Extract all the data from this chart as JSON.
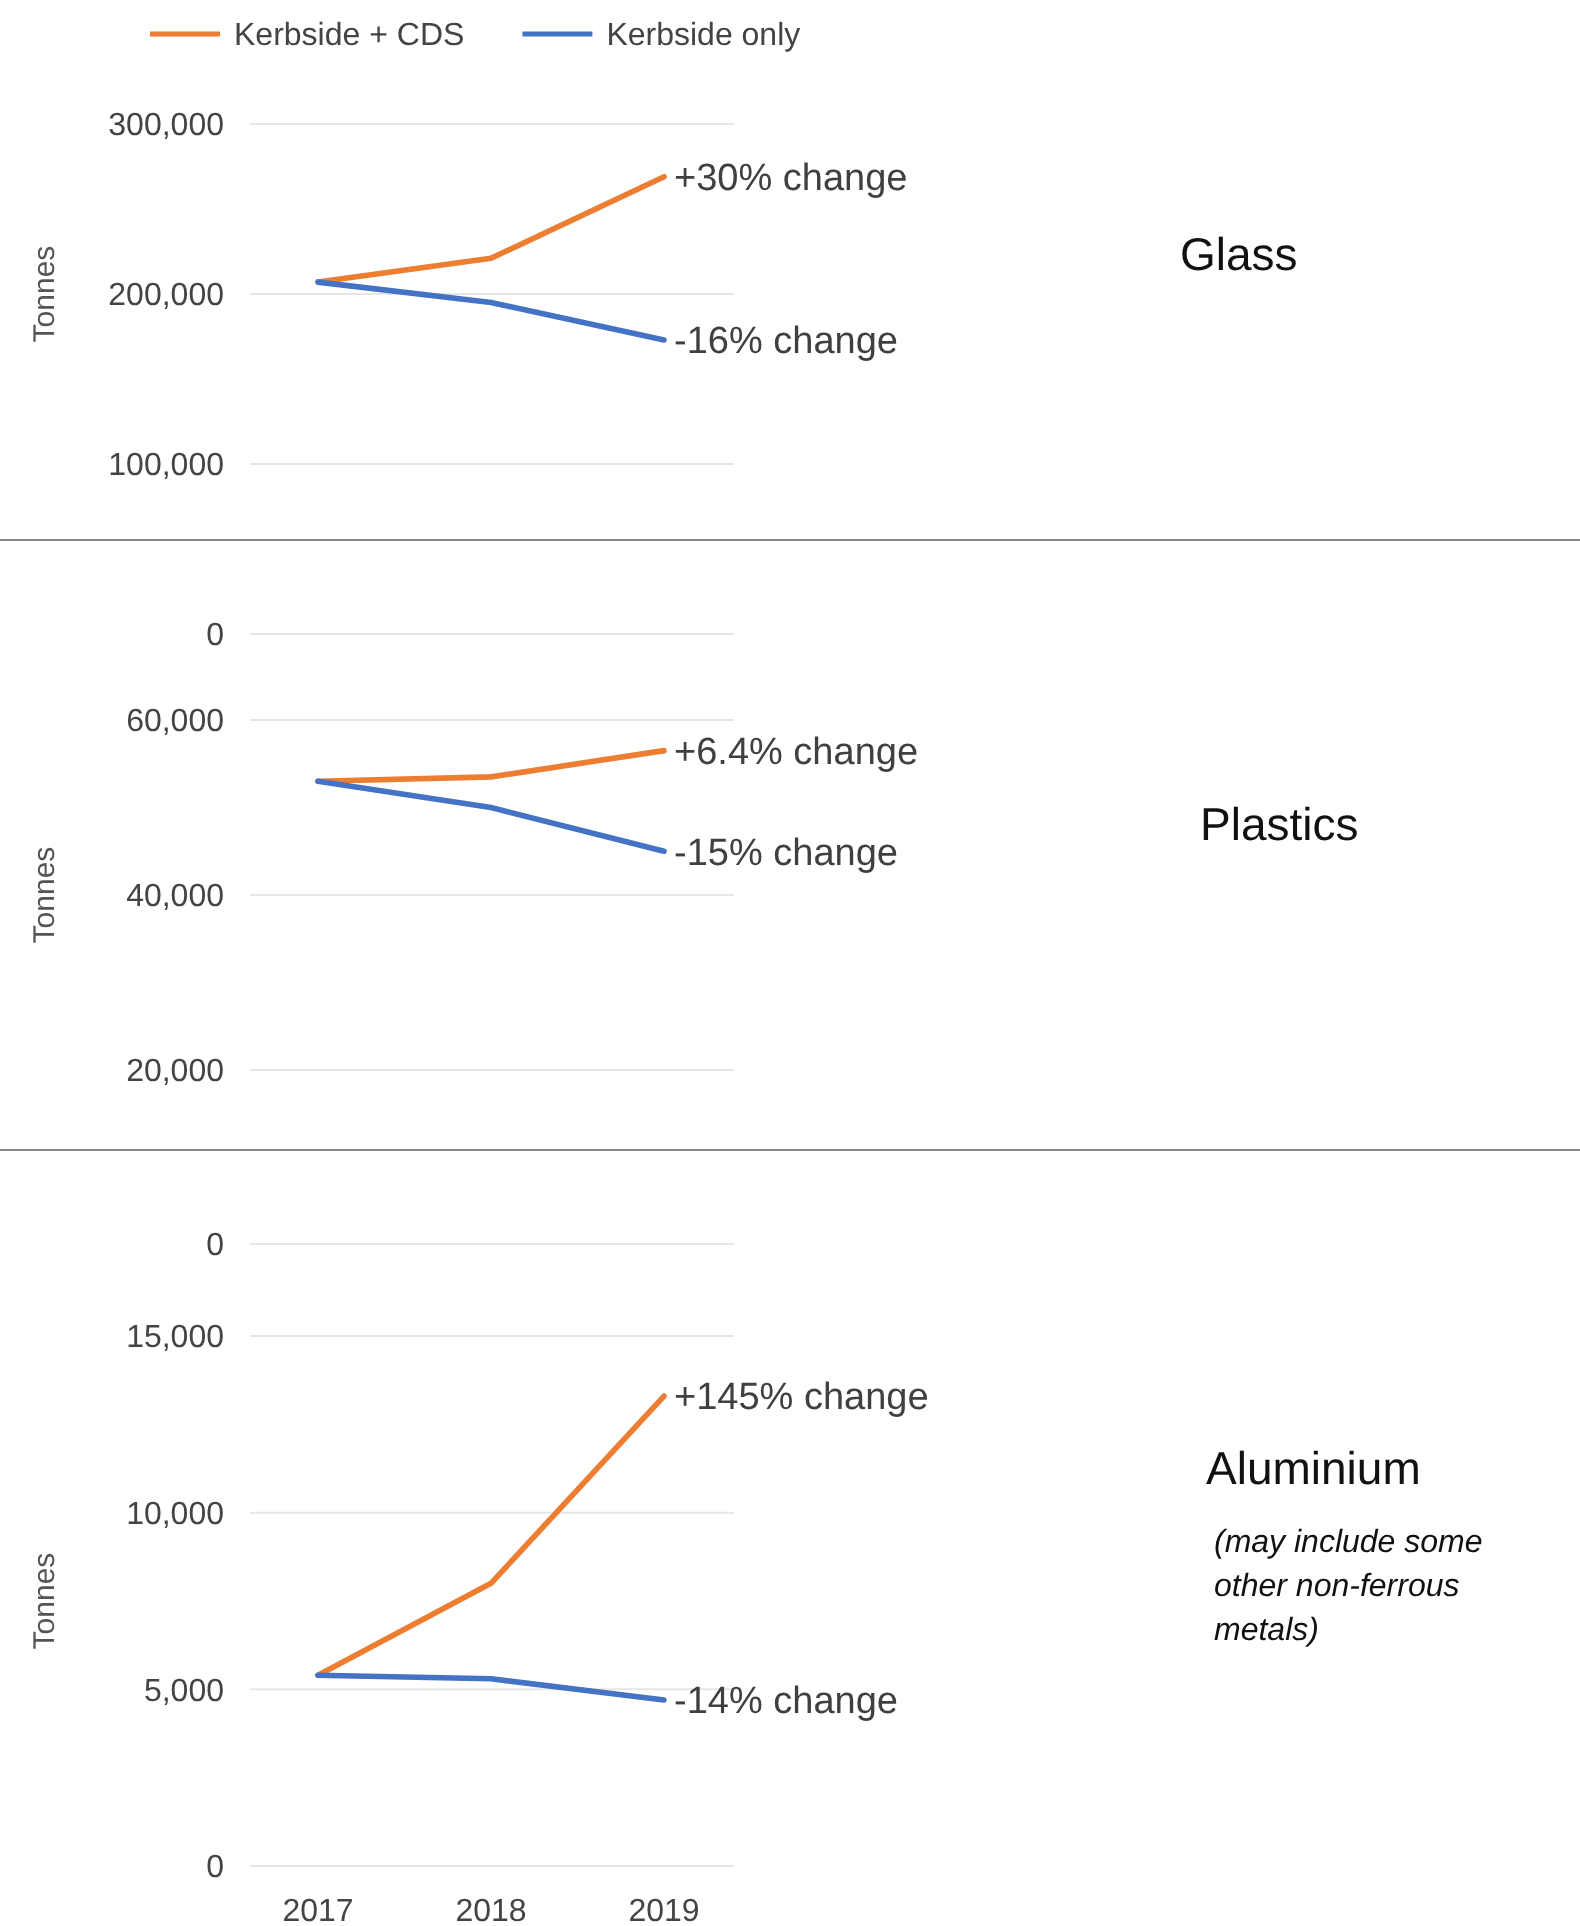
{
  "chart_data": [
    {
      "type": "line",
      "ylabel": "Tonnes",
      "categories": [
        "2017",
        "2018",
        "2019"
      ],
      "legend": "top",
      "grid": "y",
      "tick_labels": "y",
      "ylim": [
        100000,
        300000
      ],
      "yticks": [
        {
          "value": 100000,
          "label": "100,000"
        },
        {
          "value": 200000,
          "label": "200,000"
        },
        {
          "value": 300000,
          "label": "300,000"
        }
      ],
      "series": [
        {
          "name": "Kerbside + CDS",
          "color": "#ed7d31",
          "values": [
            207000,
            221000,
            269000
          ]
        },
        {
          "name": "Kerbside only",
          "color": "#4472c4",
          "values": [
            207000,
            195000,
            173000
          ]
        }
      ],
      "annotations": [
        "Glass",
        {
          "text": "+30% change",
          "x": "2019",
          "y": 269000
        },
        {
          "text": "-16% change",
          "x": "2019",
          "y": 173000
        }
      ]
    },
    {
      "type": "line",
      "ylabel": "Tonnes",
      "categories": [
        "2017",
        "2018",
        "2019"
      ],
      "grid": "y",
      "tick_labels": "y",
      "ylim": [
        20000,
        60000
      ],
      "yticks": [
        {
          "value": 20000,
          "label": "20,000"
        },
        {
          "value": 40000,
          "label": "40,000"
        },
        {
          "value": 60000,
          "label": "60,000"
        }
      ],
      "series": [
        {
          "color": "#ed7d31",
          "values": [
            53000,
            53500,
            56500
          ]
        },
        {
          "color": "#4472c4",
          "values": [
            53000,
            50000,
            45000
          ]
        }
      ],
      "annotations": [
        "Plastics",
        "0",
        {
          "text": "+6.4% change",
          "x": "2019",
          "y": 56500
        },
        {
          "text": "-15% change",
          "x": "2019",
          "y": 45000
        }
      ]
    },
    {
      "type": "line",
      "ylabel": "Tonnes",
      "categories": [
        "2017",
        "2018",
        "2019"
      ],
      "grid": "y",
      "ylim": [
        0,
        15000
      ],
      "yticks": [
        {
          "value": 0,
          "label": "0"
        },
        {
          "value": 5000,
          "label": "5,000"
        },
        {
          "value": 10000,
          "label": "10,000"
        },
        {
          "value": 15000,
          "label": "15,000"
        }
      ],
      "series": [
        {
          "color": "#ed7d31",
          "values": [
            5400,
            8000,
            13300
          ]
        },
        {
          "color": "#4472c4",
          "values": [
            5400,
            5300,
            4700
          ]
        }
      ],
      "annotations": [
        "Aluminium",
        "(may include some other non-ferrous metals)",
        "0",
        {
          "text": "+145% change",
          "x": "2019",
          "y": 13300
        },
        {
          "text": "-14% change",
          "x": "2019",
          "y": 4700
        }
      ]
    }
  ]
}
